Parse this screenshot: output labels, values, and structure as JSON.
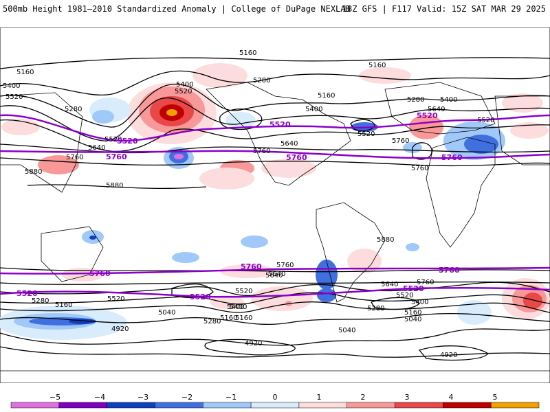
{
  "header": {
    "title_left": "500mb Height 1981–2010 Standardized Anomaly | College of DuPage NEXLAB",
    "title_right": "18Z GFS | F117 Valid: 15Z SAT MAR 29 2025"
  },
  "map": {
    "projection": "cylindrical-global",
    "coastline_color": "#000000",
    "contour_color": "#000000",
    "highlight_contour_color": "#8b00c8",
    "highlight_levels": [
      "5520",
      "5760"
    ],
    "contour_labels": [
      {
        "text": "5160"
      },
      {
        "text": "5160"
      },
      {
        "text": "5400"
      },
      {
        "text": "5520"
      },
      {
        "text": "5280"
      },
      {
        "text": "5400"
      },
      {
        "text": "5520"
      },
      {
        "text": "5280"
      },
      {
        "text": "5160"
      },
      {
        "text": "5160"
      },
      {
        "text": "5400"
      },
      {
        "text": "5640"
      },
      {
        "text": "5520"
      },
      {
        "text": "5280"
      },
      {
        "text": "5640"
      },
      {
        "text": "5400"
      },
      {
        "text": "5520"
      },
      {
        "text": "5760"
      },
      {
        "text": "5760"
      },
      {
        "text": "5880"
      },
      {
        "text": "5880"
      },
      {
        "text": "5760"
      },
      {
        "text": "5880"
      },
      {
        "text": "5760"
      },
      {
        "text": "5640"
      },
      {
        "text": "5520"
      },
      {
        "text": "5640"
      },
      {
        "text": "5400"
      },
      {
        "text": "5160"
      },
      {
        "text": "5280"
      },
      {
        "text": "5040"
      },
      {
        "text": "5640"
      },
      {
        "text": "5760"
      },
      {
        "text": "5520"
      },
      {
        "text": "5400"
      },
      {
        "text": "5160"
      },
      {
        "text": "5040"
      },
      {
        "text": "4920"
      },
      {
        "text": "4920"
      },
      {
        "text": "4920"
      },
      {
        "text": "5040"
      },
      {
        "text": "5280"
      },
      {
        "text": "5160"
      },
      {
        "text": "5520"
      },
      {
        "text": "5280"
      },
      {
        "text": "5160"
      },
      {
        "text": "5400"
      },
      {
        "text": "5640"
      },
      {
        "text": "5760"
      },
      {
        "text": "5520"
      }
    ],
    "highlight_labels": [
      {
        "text": "5520"
      },
      {
        "text": "5520"
      },
      {
        "text": "5520"
      },
      {
        "text": "5760"
      },
      {
        "text": "5760"
      },
      {
        "text": "5760"
      },
      {
        "text": "5760"
      },
      {
        "text": "5760"
      },
      {
        "text": "5760"
      },
      {
        "text": "5520"
      },
      {
        "text": "5520"
      },
      {
        "text": "5520"
      }
    ]
  },
  "colorbar": {
    "ticks": [
      "−5",
      "−4",
      "−3",
      "−2",
      "−1",
      "0",
      "1",
      "2",
      "3",
      "4",
      "5"
    ],
    "colors": [
      "#e070e0",
      "#8000c0",
      "#1040c0",
      "#4070e0",
      "#a0c8f8",
      "#d8ecfc",
      "#fcdcdc",
      "#f89898",
      "#e84848",
      "#c00000",
      "#f0a000"
    ]
  }
}
